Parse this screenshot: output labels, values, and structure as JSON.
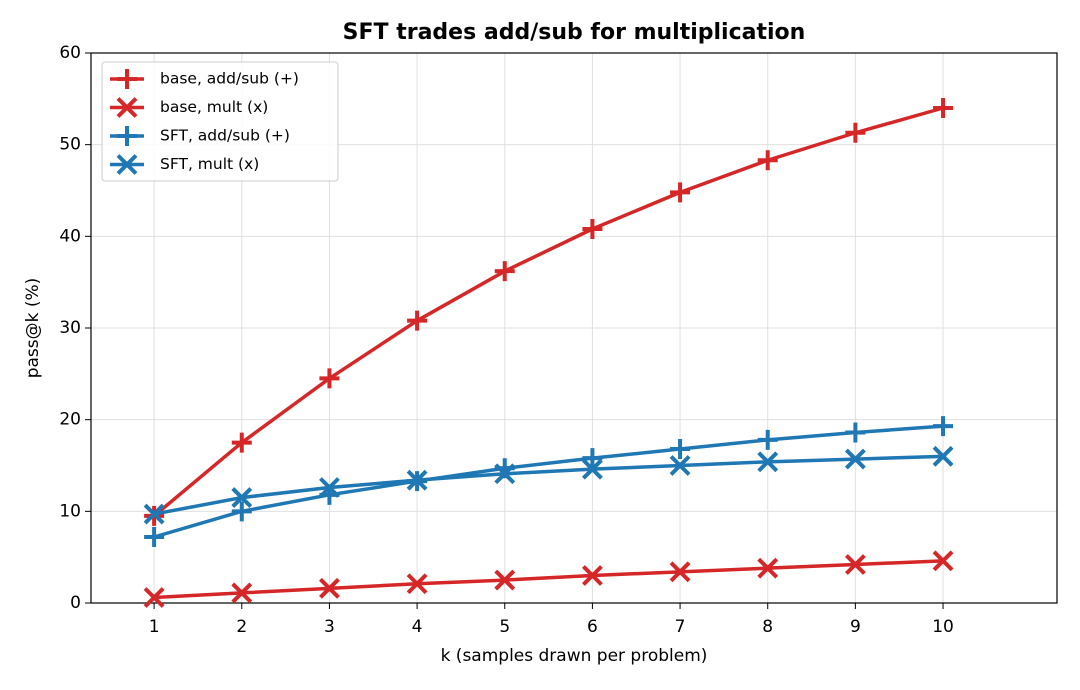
{
  "chart_data": {
    "type": "line",
    "title": "SFT trades add/sub for multiplication",
    "xlabel": "k  (samples drawn per problem)",
    "ylabel": "pass@k  (%)",
    "x": [
      1,
      2,
      3,
      4,
      5,
      6,
      7,
      8,
      9,
      10
    ],
    "series": [
      {
        "name": "base, add/sub (+)",
        "color": "#d62728",
        "marker": "+",
        "values": [
          9.5,
          17.5,
          24.5,
          30.8,
          36.2,
          40.8,
          44.8,
          48.3,
          51.3,
          54.0
        ]
      },
      {
        "name": "base, mult (x)",
        "color": "#d62728",
        "marker": "x",
        "values": [
          0.6,
          1.1,
          1.6,
          2.1,
          2.5,
          3.0,
          3.4,
          3.8,
          4.2,
          4.6
        ]
      },
      {
        "name": "SFT, add/sub (+)",
        "color": "#1f77b4",
        "marker": "+",
        "values": [
          7.2,
          10.0,
          11.8,
          13.3,
          14.7,
          15.8,
          16.8,
          17.8,
          18.6,
          19.3
        ]
      },
      {
        "name": "SFT, mult (x)",
        "color": "#1f77b4",
        "marker": "x",
        "values": [
          9.7,
          11.5,
          12.6,
          13.4,
          14.1,
          14.6,
          15.0,
          15.4,
          15.7,
          16.0
        ]
      }
    ],
    "xlim": [
      0.28,
      11.3
    ],
    "xticks": [
      1,
      2,
      3,
      4,
      5,
      6,
      7,
      8,
      9,
      10
    ],
    "ylim": [
      0,
      60
    ],
    "yticks": [
      0,
      10,
      20,
      30,
      40,
      50,
      60
    ],
    "grid": true,
    "legend": "upper left"
  }
}
